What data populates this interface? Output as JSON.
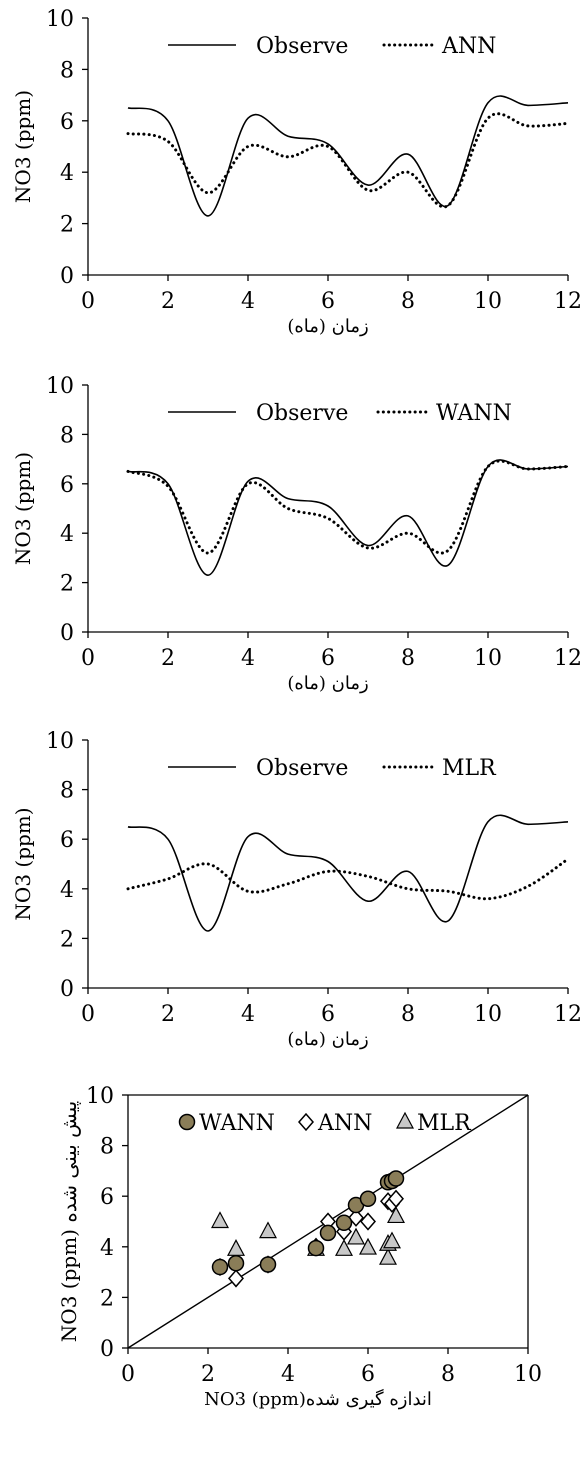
{
  "chart_data": [
    {
      "type": "line",
      "xlabel": "زمان (ماه)",
      "ylabel": "NO3 (ppm)",
      "xlim": [
        0,
        12
      ],
      "ylim": [
        0,
        10
      ],
      "xticks": [
        "0",
        "2",
        "4",
        "6",
        "8",
        "10",
        "12"
      ],
      "yticks": [
        "0",
        "2",
        "4",
        "6",
        "8",
        "10"
      ],
      "legend_position": "top",
      "series": [
        {
          "name": "Observe",
          "style": "solid",
          "x": [
            1,
            2,
            3,
            4,
            5,
            6,
            7,
            8,
            9,
            10,
            11,
            12
          ],
          "y": [
            6.5,
            6.0,
            2.3,
            6.1,
            5.4,
            5.1,
            3.5,
            4.7,
            2.7,
            6.7,
            6.6,
            6.7
          ]
        },
        {
          "name": "ANN",
          "style": "dotted",
          "x": [
            1,
            2,
            3,
            4,
            5,
            6,
            7,
            8,
            9,
            10,
            11,
            12
          ],
          "y": [
            5.5,
            5.2,
            3.2,
            5.0,
            4.6,
            5.0,
            3.3,
            4.0,
            2.7,
            6.1,
            5.8,
            5.9
          ]
        }
      ]
    },
    {
      "type": "line",
      "xlabel": "زمان (ماه)",
      "ylabel": "NO3 (ppm)",
      "xlim": [
        0,
        12
      ],
      "ylim": [
        0,
        10
      ],
      "xticks": [
        "0",
        "2",
        "4",
        "6",
        "8",
        "10",
        "12"
      ],
      "yticks": [
        "0",
        "2",
        "4",
        "6",
        "8",
        "10"
      ],
      "legend_position": "top",
      "series": [
        {
          "name": "Observe",
          "style": "solid",
          "x": [
            1,
            2,
            3,
            4,
            5,
            6,
            7,
            8,
            9,
            10,
            11,
            12
          ],
          "y": [
            6.5,
            6.0,
            2.3,
            6.1,
            5.4,
            5.1,
            3.5,
            4.7,
            2.7,
            6.7,
            6.6,
            6.7
          ]
        },
        {
          "name": "WANN",
          "style": "dotted",
          "x": [
            1,
            2,
            3,
            4,
            5,
            6,
            7,
            8,
            9,
            10,
            11,
            12
          ],
          "y": [
            6.5,
            5.9,
            3.2,
            6.0,
            5.0,
            4.6,
            3.4,
            4.0,
            3.3,
            6.7,
            6.6,
            6.7
          ]
        }
      ]
    },
    {
      "type": "line",
      "xlabel": "زمان (ماه)",
      "ylabel": "NO3 (ppm)",
      "xlim": [
        0,
        12
      ],
      "ylim": [
        0,
        10
      ],
      "xticks": [
        "0",
        "2",
        "4",
        "6",
        "8",
        "10",
        "12"
      ],
      "yticks": [
        "0",
        "2",
        "4",
        "6",
        "8",
        "10"
      ],
      "legend_position": "top",
      "series": [
        {
          "name": "Observe",
          "style": "solid",
          "x": [
            1,
            2,
            3,
            4,
            5,
            6,
            7,
            8,
            9,
            10,
            11,
            12
          ],
          "y": [
            6.5,
            6.0,
            2.3,
            6.1,
            5.4,
            5.1,
            3.5,
            4.7,
            2.7,
            6.7,
            6.6,
            6.7
          ]
        },
        {
          "name": "MLR",
          "style": "dotted",
          "x": [
            1,
            2,
            3,
            4,
            5,
            6,
            7,
            8,
            9,
            10,
            11,
            12
          ],
          "y": [
            4.0,
            4.4,
            5.0,
            3.9,
            4.2,
            4.7,
            4.5,
            4.0,
            3.9,
            3.6,
            4.1,
            5.2
          ]
        }
      ]
    },
    {
      "type": "scatter",
      "xlabel": "NO3 (ppm)اندازه گیری شده",
      "ylabel": "NO3 (ppm) پیش بینی شده",
      "xlim": [
        0,
        10
      ],
      "ylim": [
        0,
        10
      ],
      "xticks": [
        "0",
        "2",
        "4",
        "6",
        "8",
        "10"
      ],
      "yticks": [
        "0",
        "2",
        "4",
        "6",
        "8",
        "10"
      ],
      "legend_position": "top",
      "reference_line": "1:1",
      "series": [
        {
          "name": "WANN",
          "marker": "circle",
          "color": "#8a7d58",
          "points": [
            [
              2.3,
              3.2
            ],
            [
              2.7,
              3.35
            ],
            [
              3.5,
              3.3
            ],
            [
              4.7,
              3.95
            ],
            [
              5.0,
              4.55
            ],
            [
              5.4,
              4.95
            ],
            [
              5.7,
              5.65
            ],
            [
              6.0,
              5.9
            ],
            [
              6.5,
              6.55
            ],
            [
              6.6,
              6.6
            ],
            [
              6.7,
              6.7
            ]
          ]
        },
        {
          "name": "ANN",
          "marker": "diamond",
          "color": "#ffffff",
          "points": [
            [
              2.3,
              3.2
            ],
            [
              2.7,
              2.75
            ],
            [
              3.5,
              3.3
            ],
            [
              4.7,
              4.0
            ],
            [
              5.0,
              5.0
            ],
            [
              5.4,
              4.6
            ],
            [
              5.7,
              5.15
            ],
            [
              6.0,
              5.0
            ],
            [
              6.5,
              5.8
            ],
            [
              6.6,
              5.7
            ],
            [
              6.7,
              5.9
            ]
          ]
        },
        {
          "name": "MLR",
          "marker": "triangle",
          "color": "#c8c8c8",
          "points": [
            [
              2.3,
              5.0
            ],
            [
              2.7,
              3.9
            ],
            [
              3.5,
              4.6
            ],
            [
              4.7,
              3.9
            ],
            [
              5.4,
              3.9
            ],
            [
              5.7,
              4.35
            ],
            [
              6.0,
              3.95
            ],
            [
              6.5,
              3.55
            ],
            [
              6.5,
              4.1
            ],
            [
              6.6,
              4.2
            ],
            [
              6.7,
              5.2
            ]
          ]
        }
      ]
    }
  ]
}
